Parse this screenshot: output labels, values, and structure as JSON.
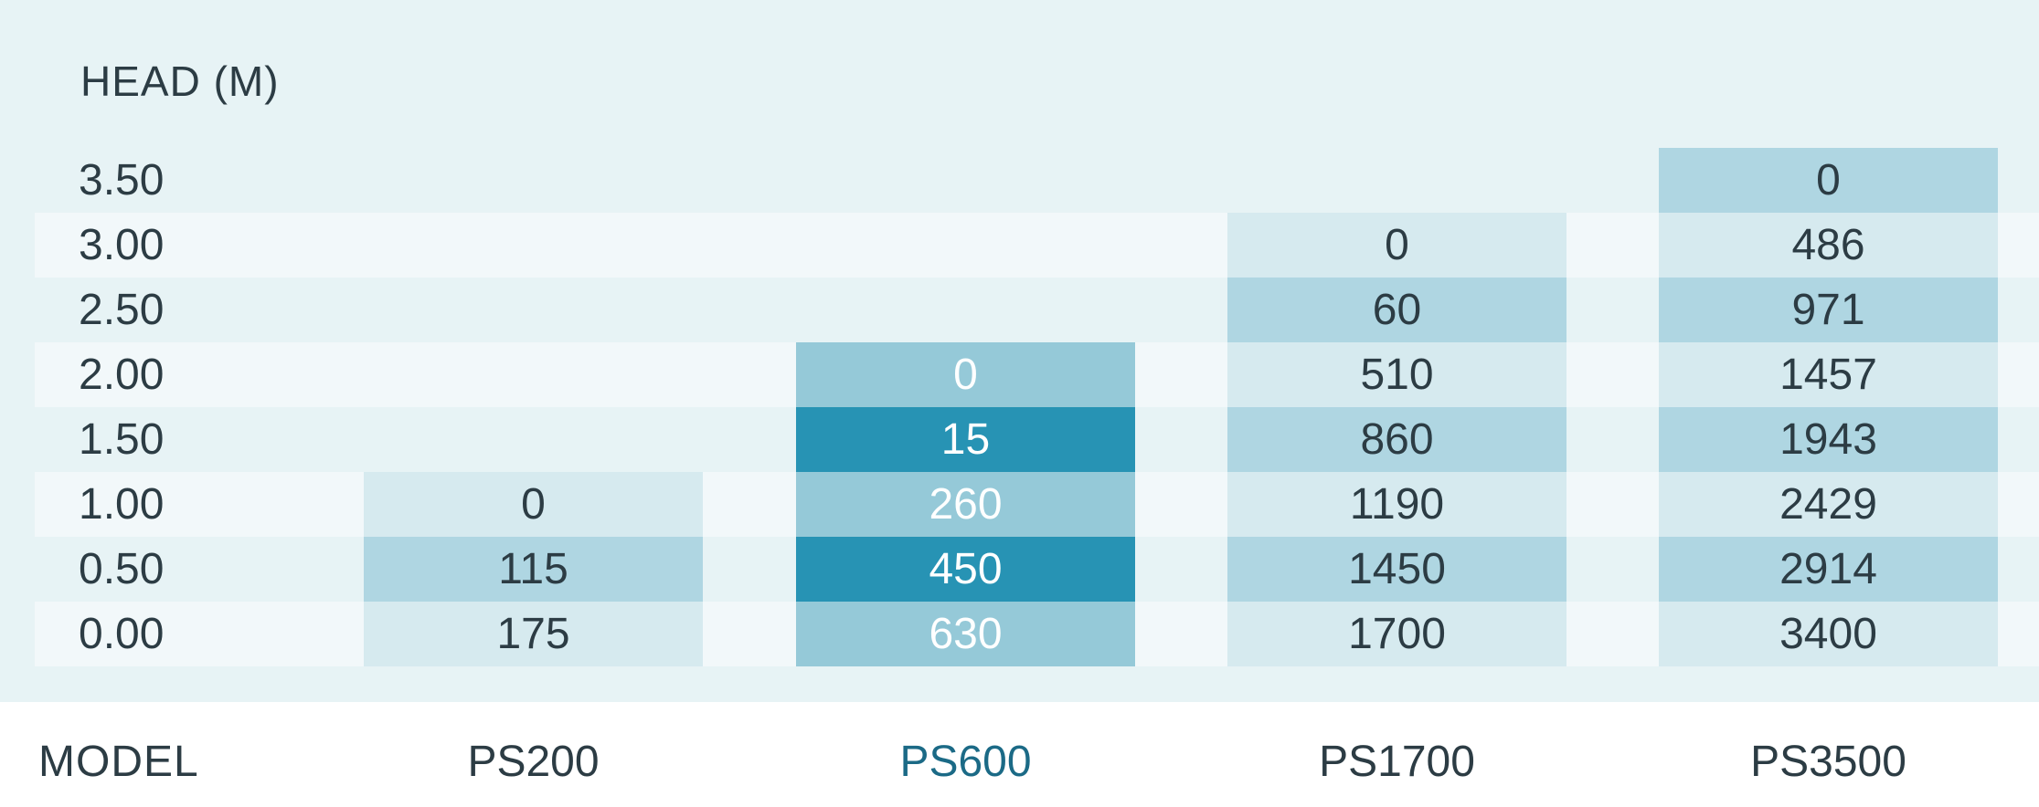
{
  "chart_data": {
    "type": "table",
    "y_axis_title": "HEAD  (M)",
    "x_axis_title": "MODEL",
    "head_values": [
      "3.50",
      "3.00",
      "2.50",
      "2.00",
      "1.50",
      "1.00",
      "0.50",
      "0.00"
    ],
    "models": [
      {
        "name": "PS200",
        "values": [
          null,
          null,
          null,
          null,
          null,
          "0",
          "115",
          "175"
        ]
      },
      {
        "name": "PS600",
        "values": [
          null,
          null,
          null,
          "0",
          "15",
          "260",
          "450",
          "630"
        ]
      },
      {
        "name": "PS1700",
        "values": [
          null,
          "0",
          "60",
          "510",
          "860",
          "1190",
          "1450",
          "1700"
        ]
      },
      {
        "name": "PS3500",
        "values": [
          "0",
          "486",
          "971",
          "1457",
          "1943",
          "2429",
          "2914",
          "3400"
        ]
      }
    ],
    "highlighted_model": "PS600",
    "colors": {
      "panel_bg": "#e7f3f5",
      "stripe_bg": "#f2f8fa",
      "cell_light": "#d6eaef",
      "cell_mid": "#afd6e2",
      "highlight_light": "#95c9d8",
      "highlight_dark": "#2793b4",
      "highlight_text": "#ffffff",
      "text": "#2c3c44",
      "highlight_model_text": "#1b6a86"
    }
  }
}
